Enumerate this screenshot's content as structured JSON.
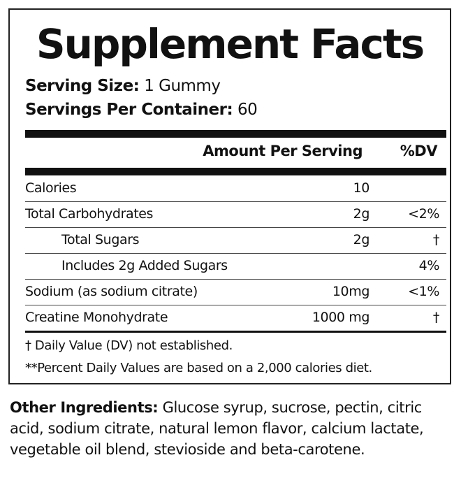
{
  "title": "Supplement Facts",
  "serving_size": {
    "label": "Serving Size:",
    "value": "1 Gummy"
  },
  "servings_per_container": {
    "label": "Servings Per Container:",
    "value": "60"
  },
  "header": {
    "amount": "Amount Per Serving",
    "dv": "%DV"
  },
  "rows": [
    {
      "name": "Calories",
      "amount": "10",
      "dv": ""
    },
    {
      "name": "Total Carbohydrates",
      "amount": "2g",
      "dv": "<2%"
    },
    {
      "name": "Total Sugars",
      "amount": "2g",
      "dv": "†",
      "indent": true
    },
    {
      "name": "Includes 2g Added Sugars",
      "amount": "",
      "dv": "4%",
      "indent": true
    },
    {
      "name": "Sodium (as sodium citrate)",
      "amount": "10mg",
      "dv": "<1%"
    },
    {
      "name": "Creatine Monohydrate",
      "amount": "1000 mg",
      "dv": "†"
    }
  ],
  "footnotes": [
    "† Daily Value (DV) not established.",
    "**Percent Daily Values are based on a 2,000 calories diet."
  ],
  "other_ingredients": {
    "label": "Other Ingredients:",
    "value": "Glucose syrup, sucrose, pectin, citric acid, sodium citrate, natural lemon flavor, calcium lactate, vegetable oil blend, stevioside and beta-carotene."
  }
}
